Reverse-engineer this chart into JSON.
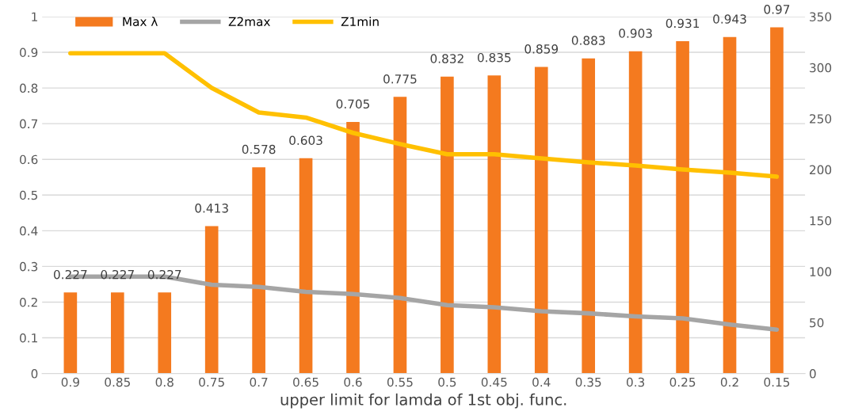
{
  "chart_data": {
    "type": "bar",
    "xlabel": "upper limit for lamda of 1st obj. func.",
    "categories": [
      "0.9",
      "0.85",
      "0.8",
      "0.75",
      "0.7",
      "0.65",
      "0.6",
      "0.55",
      "0.5",
      "0.45",
      "0.4",
      "0.35",
      "0.3",
      "0.25",
      "0.2",
      "0.15"
    ],
    "series": [
      {
        "name": "Max λ",
        "color": "#f47a1f",
        "values": [
          0.227,
          0.227,
          0.227,
          0.413,
          0.578,
          0.603,
          0.705,
          0.775,
          0.832,
          0.835,
          0.859,
          0.883,
          0.903,
          0.931,
          0.943,
          0.97
        ],
        "data_labels": true
      },
      {
        "name": "Z2max",
        "type": "line",
        "axis": "y2",
        "color": "#a5a5a5",
        "values": [
          95,
          95,
          95,
          87,
          85,
          80,
          78,
          74,
          67,
          65,
          61,
          59,
          56,
          54,
          48,
          43
        ]
      },
      {
        "name": "Z1min",
        "type": "line",
        "axis": "y2",
        "color": "#ffc000",
        "values": [
          314,
          314,
          314,
          280,
          256,
          251,
          236,
          225,
          215,
          215,
          211,
          207,
          204,
          200,
          197,
          193
        ]
      }
    ],
    "ylim": [
      0,
      1
    ],
    "yticks": [
      0,
      0.1,
      0.2,
      0.3,
      0.4,
      0.5,
      0.6,
      0.7,
      0.8,
      0.9,
      1
    ],
    "y2lim": [
      0,
      350
    ],
    "y2ticks": [
      0,
      50,
      100,
      150,
      200,
      250,
      300,
      350
    ],
    "grid": "y",
    "legend": "top left"
  }
}
